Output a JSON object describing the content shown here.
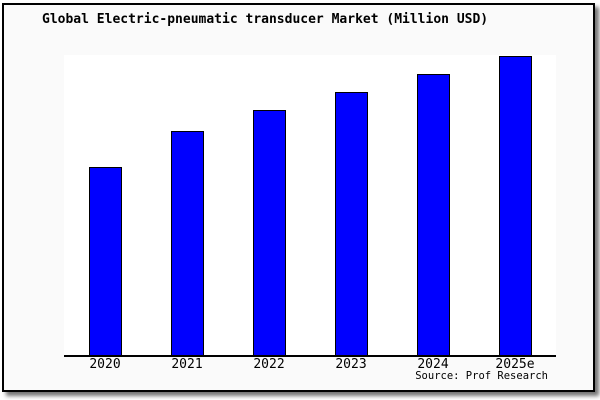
{
  "title": "Global Electric-pneumatic transducer Market (Million USD)",
  "source_note": "Source: Prof Research",
  "colors": {
    "bar_fill": "#0000ff",
    "bar_border": "#000000",
    "plot_background": "#ffffff",
    "frame_background": "#fafafa",
    "axis_line": "#000000",
    "text": "#000000"
  },
  "chart_data": {
    "type": "bar",
    "title": "Global Electric-pneumatic transducer Market (Million USD)",
    "categories": [
      "2020",
      "2021",
      "2022",
      "2023",
      "2024",
      "2025e"
    ],
    "values": [
      63,
      75,
      82,
      88,
      94,
      100
    ],
    "xlabel": "",
    "ylabel": "",
    "ylim": [
      0,
      100.3
    ],
    "grid": false,
    "legend": false,
    "y_axis_ticks_shown": false,
    "annotations": [
      "Source: Prof Research"
    ]
  }
}
